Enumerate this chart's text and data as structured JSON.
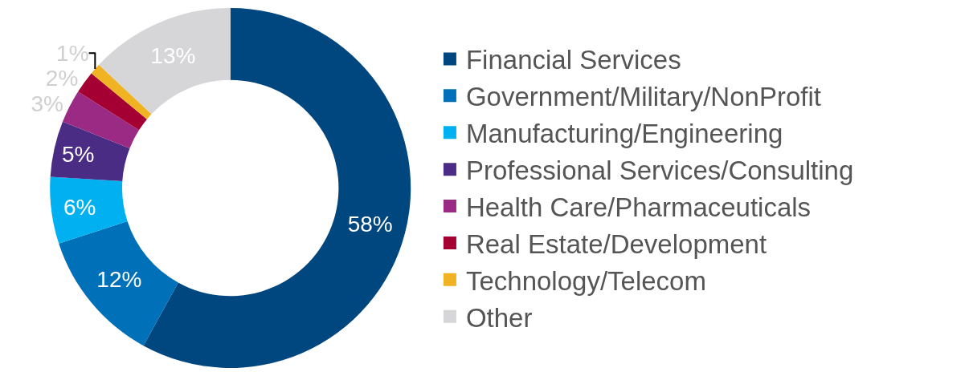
{
  "chart_data": {
    "type": "donut",
    "categories": [
      "Financial Services",
      "Government/Military/NonProfit",
      "Manufacturing/Engineering",
      "Professional Services/Consulting",
      "Health Care/Pharmaceuticals",
      "Real Estate/Development",
      "Technology/Telecom",
      "Other"
    ],
    "values": [
      58,
      12,
      6,
      5,
      3,
      2,
      1,
      13
    ],
    "colors": [
      "#00467f",
      "#0070b8",
      "#00b0f0",
      "#4b2c85",
      "#9b2a85",
      "#a50034",
      "#f0b323",
      "#d6d6d8"
    ],
    "value_labels": [
      "58%",
      "12%",
      "6%",
      "5%",
      "3%",
      "2%",
      "1%",
      "13%"
    ],
    "legend": "right"
  }
}
